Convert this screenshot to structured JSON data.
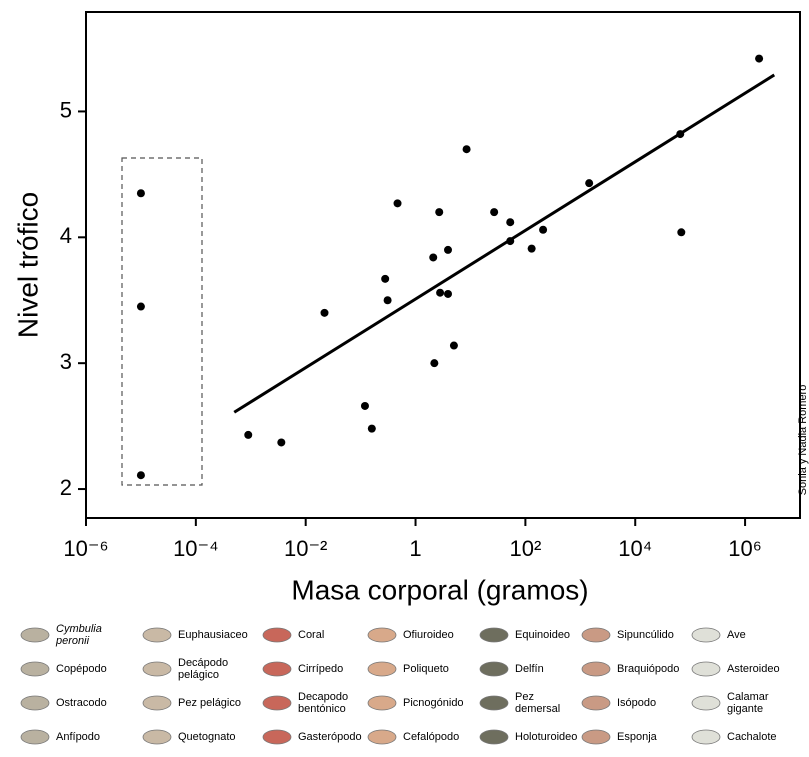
{
  "chart_data": {
    "type": "scatter",
    "x_label": "Masa corporal (gramos)",
    "y_label": "Nivel trófico",
    "credit": "Sonia y Nadia Romero",
    "log_x": true,
    "xlim": [
      1e-06,
      10000000
    ],
    "ylim": [
      1.77,
      5.79
    ],
    "xticks": [
      {
        "value": 1e-06,
        "label": "10⁻⁶"
      },
      {
        "value": 0.0001,
        "label": "10⁻⁴"
      },
      {
        "value": 0.01,
        "label": "10⁻²"
      },
      1,
      {
        "value": 100,
        "label": "10²"
      },
      {
        "value": 10000,
        "label": "10⁴"
      },
      {
        "value": 1000000,
        "label": "10⁶"
      }
    ],
    "yticks": [
      2,
      3,
      4,
      5
    ],
    "color": "#000000",
    "x": [
      1e-05,
      1e-05,
      1e-05,
      0.0009,
      0.0036,
      0.022,
      0.12,
      0.16,
      0.47,
      0.28,
      0.31,
      2.7,
      2.1,
      3.9,
      2.8,
      3.9,
      2.2,
      5.0,
      8.5,
      27,
      53,
      53,
      210,
      130,
      1450,
      66000,
      69000,
      1800000
    ],
    "values": [
      4.35,
      3.45,
      2.11,
      2.43,
      2.37,
      3.4,
      2.66,
      2.48,
      4.27,
      3.67,
      3.5,
      4.2,
      3.84,
      3.9,
      3.56,
      3.55,
      3.0,
      3.14,
      4.7,
      4.2,
      4.12,
      3.97,
      4.06,
      3.91,
      4.43,
      4.82,
      4.04,
      5.42
    ],
    "trend_line": {
      "x": [
        0.0005,
        3400000
      ],
      "values": [
        2.61,
        5.29
      ]
    },
    "legend_items": [
      "Cymbulia peronii",
      "Euphausiaceo",
      "Coral",
      "Ofiuroideo",
      "Equinoideo",
      "Sipuncúlido",
      "Ave",
      "Copépodo",
      "Decápodo pelágico",
      "Cirrípedo",
      "Poliqueto",
      "Delfín",
      "Braquiópodo",
      "Asteroideo",
      "Ostracodo",
      "Pez pelágico",
      "Decapodo bentónico",
      "Picnogónido",
      "Pez demersal",
      "Isópodo",
      "Calamar gigante",
      "Anfípodo",
      "Quetognato",
      "Gasterópodo",
      "Cefalópodo",
      "Holoturoideo",
      "Esponja",
      "Cachalote"
    ]
  }
}
